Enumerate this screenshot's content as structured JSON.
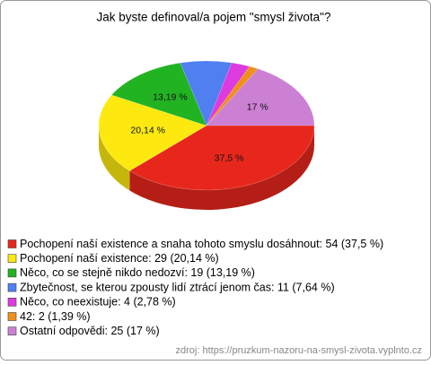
{
  "chart_data": {
    "type": "pie3d",
    "title": "Jak byste definoval/a pojem \"smysl života\"?",
    "categories": [
      "Pochopení naší existence a snaha tohoto smyslu dosáhnout: 54 (37,5 %)",
      "Pochopení naší existence: 29 (20,14 %)",
      "Něco, co se stejně nikdo nedozví: 19 (13,19 %)",
      "Zbytečnost, se kterou zpousty lidí ztrácí jenom čas: 11 (7,64 %)",
      "Něco, co neexistuje: 4 (2,78 %)",
      "42: 2 (1,39 %)",
      "Ostatní odpovědi: 25 (17 %)"
    ],
    "values": [
      37.5,
      20.14,
      13.19,
      7.64,
      2.78,
      1.39,
      17
    ],
    "value_labels": [
      "37,5 %",
      "20,14 %",
      "13,19 %",
      null,
      null,
      null,
      "17 %"
    ],
    "colors": [
      "#e8271c",
      "#fde910",
      "#22b322",
      "#4f7ff0",
      "#dd3ae0",
      "#f0901c",
      "#cc80d4"
    ],
    "source": "zdroj: https://pruzkum-nazoru-na-smysl-zivota.vyplnto.cz"
  }
}
